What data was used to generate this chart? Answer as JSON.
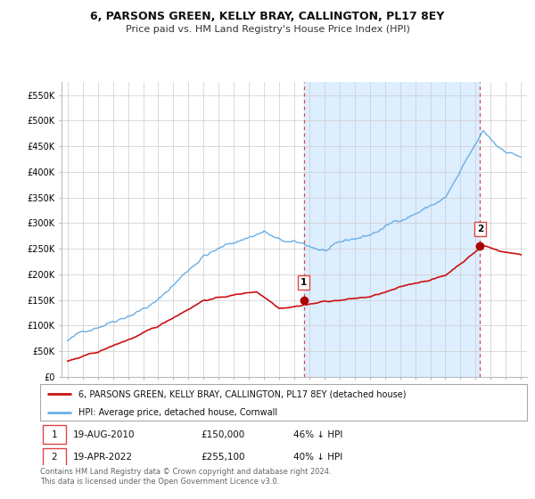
{
  "title": "6, PARSONS GREEN, KELLY BRAY, CALLINGTON, PL17 8EY",
  "subtitle": "Price paid vs. HM Land Registry's House Price Index (HPI)",
  "ylabel_ticks": [
    "£0",
    "£50K",
    "£100K",
    "£150K",
    "£200K",
    "£250K",
    "£300K",
    "£350K",
    "£400K",
    "£450K",
    "£500K",
    "£550K"
  ],
  "ytick_values": [
    0,
    50000,
    100000,
    150000,
    200000,
    250000,
    300000,
    350000,
    400000,
    450000,
    500000,
    550000
  ],
  "ylim": [
    0,
    575000
  ],
  "xlim_start": 1994.6,
  "xlim_end": 2025.4,
  "hpi_color": "#6aafe6",
  "hpi_fill_color": "#ddeeff",
  "price_color": "#cc1111",
  "marker_color": "#aa0000",
  "vline_color": "#dd4444",
  "sale1_x": 2010.63,
  "sale1_y": 150000,
  "sale2_x": 2022.29,
  "sale2_y": 255100,
  "legend_line1": "6, PARSONS GREEN, KELLY BRAY, CALLINGTON, PL17 8EY (detached house)",
  "legend_line2": "HPI: Average price, detached house, Cornwall",
  "ann1_num": "1",
  "ann1_date": "19-AUG-2010",
  "ann1_price": "£150,000",
  "ann1_pct": "46% ↓ HPI",
  "ann2_num": "2",
  "ann2_date": "19-APR-2022",
  "ann2_price": "£255,100",
  "ann2_pct": "40% ↓ HPI",
  "footnote_line1": "Contains HM Land Registry data © Crown copyright and database right 2024.",
  "footnote_line2": "This data is licensed under the Open Government Licence v3.0.",
  "bg_color": "#ffffff",
  "grid_color": "#cccccc",
  "title_fontsize": 9,
  "subtitle_fontsize": 8,
  "tick_fontsize": 7,
  "legend_fontsize": 7,
  "ann_fontsize": 7.5
}
